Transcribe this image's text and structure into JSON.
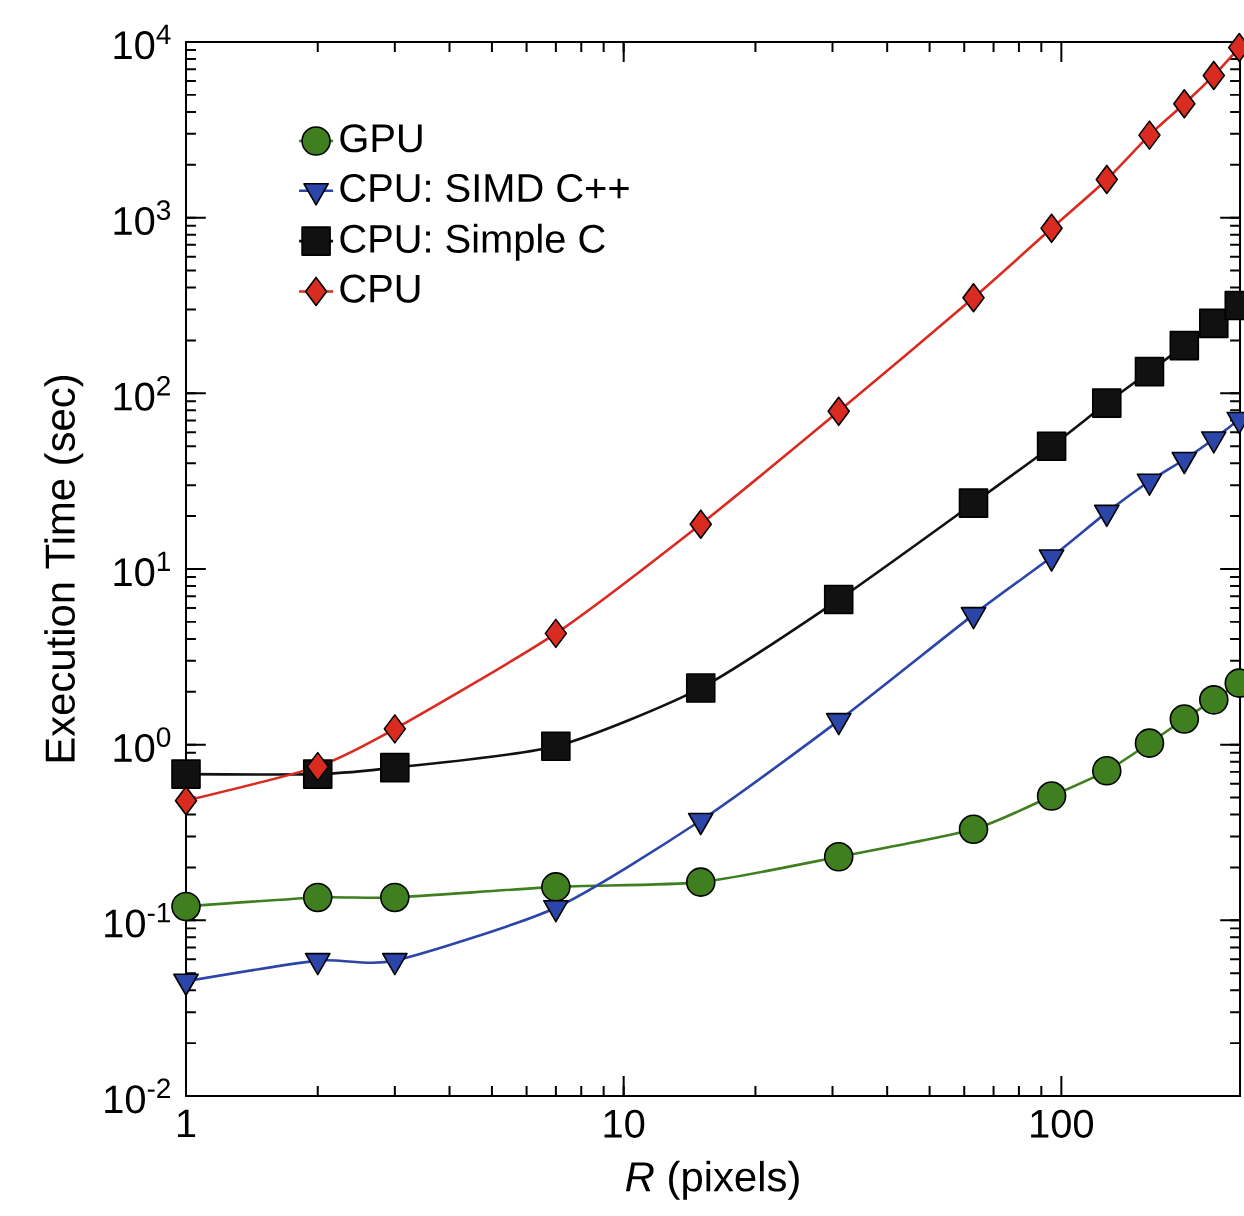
{
  "chart_data": {
    "type": "line",
    "xlabel": "*R* (pixels)",
    "ylabel": "Execution Time (sec)",
    "log": "xy",
    "legend": "top left",
    "grid": false,
    "x": [
      1,
      2,
      3,
      7,
      15,
      31,
      63,
      95,
      127,
      159,
      191,
      223,
      255
    ],
    "xlim": [
      1,
      256
    ],
    "ylim": [
      0.01,
      10000
    ],
    "xticks": [
      1,
      10,
      100
    ],
    "yticks": [
      {
        "value": 0.01,
        "label": "10$^{-2}$"
      },
      {
        "value": 0.1,
        "label": "10$^{-1}$"
      },
      {
        "value": 1,
        "label": "10$^{0}$"
      },
      {
        "value": 10,
        "label": "10$^{1}$"
      },
      {
        "value": 100,
        "label": "10$^{2}$"
      },
      {
        "value": 1000,
        "label": "10$^{3}$"
      },
      {
        "value": 10000,
        "label": "10$^{4}$"
      }
    ],
    "series": [
      {
        "name": "GPU",
        "color": "#3f7f1f",
        "marker": "circle",
        "values": [
          0.12,
          0.135,
          0.135,
          0.155,
          0.165,
          0.23,
          0.33,
          0.51,
          0.71,
          1.02,
          1.4,
          1.8,
          2.24
        ]
      },
      {
        "name": "CPU: SIMD C++",
        "color": "#2b45a8",
        "marker": "triangle",
        "values": [
          0.045,
          0.059,
          0.059,
          0.118,
          0.37,
          1.37,
          5.5,
          11.7,
          21,
          31.6,
          42,
          55,
          71
        ]
      },
      {
        "name": "CPU: Simple C",
        "color": "#111111",
        "marker": "square",
        "values": [
          0.68,
          0.68,
          0.74,
          0.98,
          2.1,
          6.7,
          23.7,
          50,
          88,
          133,
          187,
          250,
          316
        ]
      },
      {
        "name": "CPU",
        "color": "#d92b1f",
        "marker": "diamond",
        "values": [
          0.48,
          0.75,
          1.23,
          4.3,
          18,
          79,
          350,
          870,
          1650,
          2950,
          4450,
          6450,
          9300
        ]
      }
    ]
  }
}
